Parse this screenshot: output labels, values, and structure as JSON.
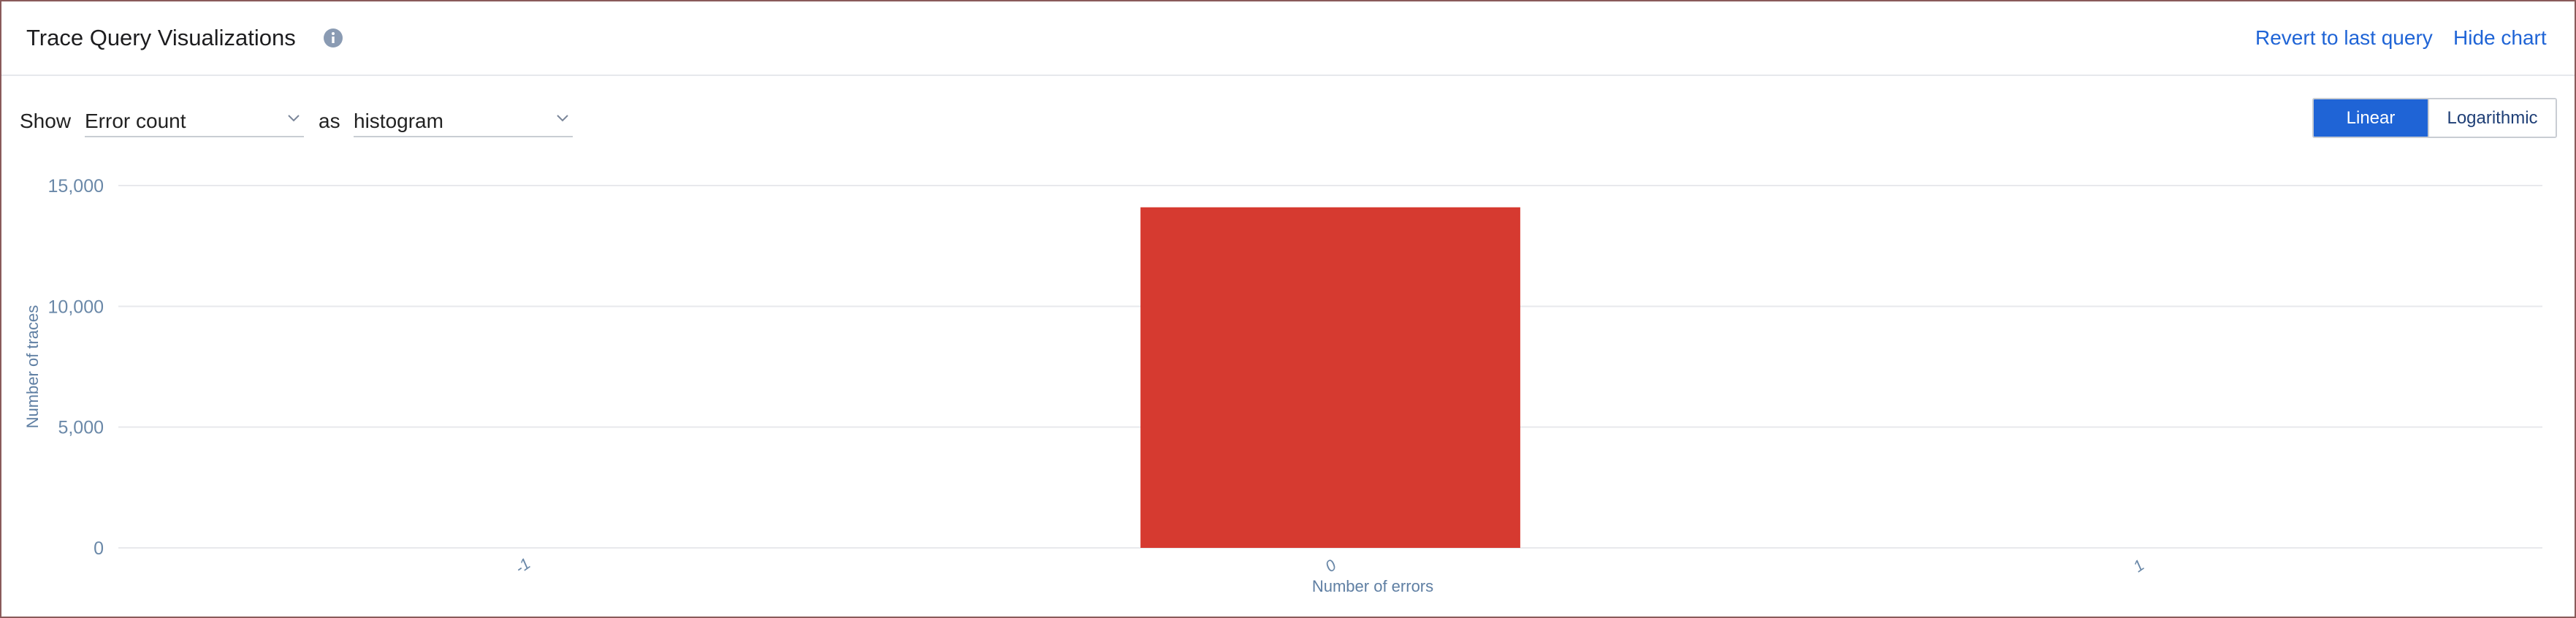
{
  "header": {
    "title": "Trace Query Visualizations",
    "revert_label": "Revert to last query",
    "hide_label": "Hide chart"
  },
  "controls": {
    "show_label": "Show",
    "metric_value": "Error count",
    "as_label": "as",
    "type_value": "histogram",
    "scale_linear": "Linear",
    "scale_log": "Logarithmic",
    "active_scale": "Linear"
  },
  "colors": {
    "accent": "#1f64d6",
    "bar": "#d63a30",
    "grid": "#e8e9ec",
    "tick": "#6a88a8"
  },
  "chart_data": {
    "type": "bar",
    "title": "",
    "xlabel": "Number of errors",
    "ylabel": "Number of traces",
    "categories": [
      "-1",
      "0",
      "1"
    ],
    "values": [
      0,
      14100,
      0
    ],
    "yticks": [
      0,
      5000,
      10000,
      15000
    ],
    "ytick_labels": [
      "0",
      "5,000",
      "10,000",
      "15,000"
    ],
    "ylim": [
      0,
      15000
    ],
    "grid": true,
    "legend": "none"
  }
}
